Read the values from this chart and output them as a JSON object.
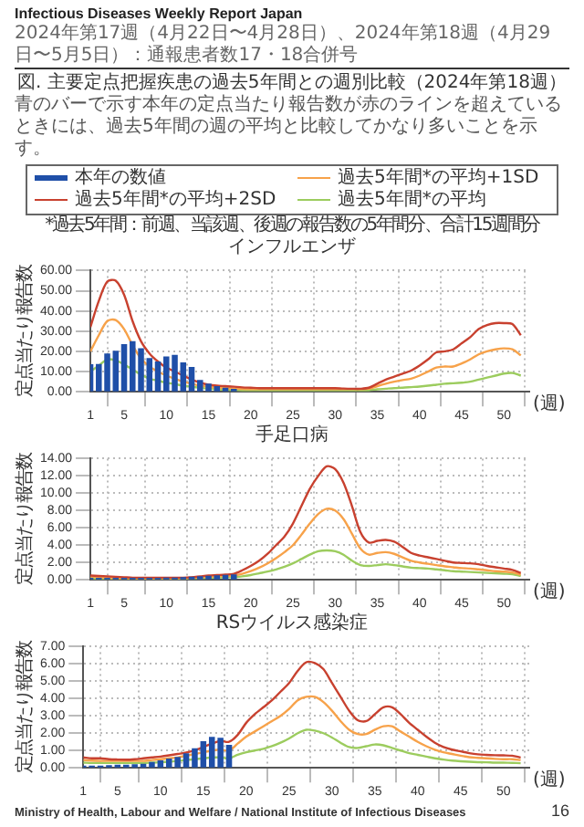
{
  "chart_data": [
    {
      "type": "line",
      "title": "インフルエンザ",
      "ylabel": "定点当たり報告数",
      "xlabel": "(週)",
      "annotations": [
        "Infectious Diseases Weekly Report Japan",
        "2024年第17週（4月22日〜4月28日）、2024年第18週（4月29日〜5月5日）：通報患者数17・18合併号",
        "図. 主要定点把握疾患の過去5年間との週別比較（2024年第18週）",
        "青のバーで示す本年の定点当たり報告数が赤のラインを超えているときには、過去5年間の週の平均と比較してかなり多いことを示す。",
        "*過去5年間：前週、当該週、後週の報告数の5年間分、合計15週間分"
      ],
      "x": [
        1,
        2,
        3,
        4,
        5,
        6,
        7,
        8,
        9,
        10,
        11,
        12,
        13,
        14,
        15,
        16,
        17,
        18,
        19,
        20,
        21,
        22,
        23,
        24,
        25,
        26,
        27,
        28,
        29,
        30,
        31,
        32,
        33,
        34,
        35,
        36,
        37,
        38,
        39,
        40,
        41,
        42,
        43,
        44,
        45,
        46,
        47,
        48,
        49,
        50,
        51,
        52
      ],
      "xlim": [
        1,
        53
      ],
      "xticks": [
        1,
        5,
        10,
        15,
        20,
        25,
        30,
        35,
        40,
        45,
        50
      ],
      "ylim": [
        0,
        60
      ],
      "yticks": [
        {
          "value": 0,
          "label": "0.00"
        },
        {
          "value": 10,
          "label": "10.00"
        },
        {
          "value": 20,
          "label": "20.00"
        },
        {
          "value": 30,
          "label": "30.00"
        },
        {
          "value": 40,
          "label": "40.00"
        },
        {
          "value": 50,
          "label": "50.00"
        },
        {
          "value": 60,
          "label": "60.00"
        }
      ],
      "grid": true,
      "legend": "top",
      "series": [
        {
          "name": "本年の数値",
          "type": "bar",
          "color": "#1f4fa8",
          "x": [
            1,
            2,
            3,
            4,
            5,
            6,
            7,
            8,
            9,
            10,
            11,
            12,
            13,
            14,
            15,
            16,
            17,
            18
          ],
          "values": [
            13.3,
            13.5,
            18.6,
            20,
            23.3,
            24.7,
            21.3,
            16.4,
            14.7,
            17.2,
            18,
            14.3,
            12,
            5.6,
            3.7,
            2.5,
            1.7,
            1.2
          ]
        },
        {
          "name": "過去5年間*の平均+2SD",
          "color": "#c8412f",
          "values": [
            32,
            45,
            54.5,
            55,
            48,
            35,
            25,
            19,
            15,
            12,
            10,
            8,
            6,
            4.5,
            3.5,
            3,
            2.8,
            2.5,
            2.2,
            2,
            1.8,
            1.8,
            1.8,
            1.8,
            1.8,
            1.8,
            1.8,
            1.8,
            1.8,
            1.8,
            1.6,
            1.5,
            1.5,
            2,
            4,
            6,
            7.5,
            9,
            10.5,
            13,
            16,
            19.5,
            20,
            21,
            24,
            27,
            31,
            33,
            34,
            34,
            33.5,
            28
          ]
        },
        {
          "name": "過去5年間*の平均+1SD",
          "color": "#f7a24a",
          "values": [
            20,
            28,
            35,
            35.5,
            31,
            23,
            16.5,
            12.5,
            10,
            8,
            6.5,
            5,
            4,
            3,
            2.5,
            2,
            1.8,
            1.6,
            1.4,
            1.3,
            1.3,
            1.3,
            1.3,
            1.3,
            1.3,
            1.3,
            1.3,
            1.3,
            1.3,
            1.3,
            1.3,
            1.3,
            1.3,
            1.5,
            2.8,
            4,
            5,
            5.8,
            6.5,
            8,
            10,
            12,
            12.5,
            12.5,
            14,
            16,
            18.5,
            20,
            21,
            21.5,
            21,
            18
          ]
        },
        {
          "name": "過去5年間*の平均",
          "color": "#9ccc5e",
          "values": [
            10,
            13,
            16,
            15.5,
            13.5,
            11,
            8.5,
            6.5,
            5.5,
            4.5,
            3.8,
            3,
            2.5,
            2,
            1.5,
            1.2,
            1,
            0.9,
            0.8,
            0.7,
            0.7,
            0.7,
            0.7,
            0.7,
            0.7,
            0.7,
            0.7,
            0.7,
            0.7,
            0.7,
            0.7,
            0.7,
            0.7,
            0.8,
            1.2,
            1.5,
            1.8,
            2,
            2.3,
            2.6,
            3,
            3.5,
            4,
            4.2,
            4.5,
            5,
            6,
            7,
            8,
            9,
            9.3,
            8
          ]
        }
      ]
    },
    {
      "type": "line",
      "title": "手足口病",
      "ylabel": "定点当たり報告数",
      "xlabel": "(週)",
      "x": [
        1,
        2,
        3,
        4,
        5,
        6,
        7,
        8,
        9,
        10,
        11,
        12,
        13,
        14,
        15,
        16,
        17,
        18,
        19,
        20,
        21,
        22,
        23,
        24,
        25,
        26,
        27,
        28,
        29,
        30,
        31,
        32,
        33,
        34,
        35,
        36,
        37,
        38,
        39,
        40,
        41,
        42,
        43,
        44,
        45,
        46,
        47,
        48,
        49,
        50,
        51,
        52
      ],
      "xlim": [
        1,
        53
      ],
      "xticks": [
        1,
        5,
        10,
        15,
        20,
        25,
        30,
        35,
        40,
        45,
        50
      ],
      "ylim": [
        0,
        14
      ],
      "yticks": [
        {
          "value": 0,
          "label": "0.00"
        },
        {
          "value": 2,
          "label": "2.00"
        },
        {
          "value": 4,
          "label": "4.00"
        },
        {
          "value": 6,
          "label": "6.00"
        },
        {
          "value": 8,
          "label": "8.00"
        },
        {
          "value": 10,
          "label": "10.00"
        },
        {
          "value": 12,
          "label": "12.00"
        },
        {
          "value": 14,
          "label": "14.00"
        }
      ],
      "grid": true,
      "series": [
        {
          "type": "bar",
          "color": "#1f4fa8",
          "x": [
            1,
            2,
            3,
            4,
            5,
            6,
            7,
            8,
            9,
            10,
            11,
            12,
            13,
            14,
            15,
            16,
            17,
            18
          ],
          "values": [
            0.15,
            0.15,
            0.15,
            0.15,
            0.15,
            0.15,
            0.15,
            0.15,
            0.15,
            0.2,
            0.2,
            0.25,
            0.3,
            0.35,
            0.4,
            0.45,
            0.5,
            0.55
          ]
        },
        {
          "color": "#c8412f",
          "values": [
            0.5,
            0.45,
            0.4,
            0.35,
            0.3,
            0.25,
            0.25,
            0.25,
            0.25,
            0.25,
            0.25,
            0.25,
            0.3,
            0.4,
            0.5,
            0.55,
            0.6,
            0.7,
            1.1,
            1.6,
            2.2,
            3,
            4,
            5,
            6.5,
            8.5,
            10.5,
            12,
            13.1,
            12.8,
            11.2,
            8.5,
            5.5,
            4.3,
            4.5,
            4.6,
            4.4,
            3.8,
            3.1,
            2.8,
            2.6,
            2.4,
            2.2,
            2,
            1.95,
            1.9,
            1.8,
            1.6,
            1.45,
            1.3,
            1.15,
            0.8
          ]
        },
        {
          "color": "#f7a24a",
          "values": [
            0.4,
            0.3,
            0.25,
            0.2,
            0.2,
            0.2,
            0.2,
            0.2,
            0.2,
            0.2,
            0.2,
            0.2,
            0.25,
            0.3,
            0.35,
            0.4,
            0.45,
            0.5,
            0.7,
            1,
            1.4,
            1.9,
            2.5,
            3.2,
            4,
            5.2,
            6.5,
            7.6,
            8.2,
            8,
            7,
            5.3,
            3.6,
            2.9,
            3.1,
            3.2,
            3,
            2.6,
            2.2,
            2,
            1.85,
            1.7,
            1.55,
            1.45,
            1.35,
            1.3,
            1.2,
            1.1,
            1,
            0.95,
            0.85,
            0.6
          ]
        },
        {
          "color": "#9ccc5e",
          "values": [
            0.2,
            0.15,
            0.15,
            0.15,
            0.15,
            0.15,
            0.15,
            0.15,
            0.15,
            0.15,
            0.15,
            0.15,
            0.2,
            0.2,
            0.25,
            0.25,
            0.3,
            0.3,
            0.4,
            0.55,
            0.75,
            0.95,
            1.2,
            1.5,
            1.9,
            2.4,
            2.9,
            3.3,
            3.4,
            3.3,
            2.9,
            2.2,
            1.7,
            1.6,
            1.7,
            1.8,
            1.7,
            1.55,
            1.4,
            1.35,
            1.3,
            1.2,
            1.1,
            1,
            0.95,
            0.9,
            0.85,
            0.8,
            0.75,
            0.7,
            0.65,
            0.45
          ]
        }
      ]
    },
    {
      "type": "line",
      "title": "RSウイルス感染症",
      "ylabel": "定点当たり報告数",
      "xlabel": "(週)",
      "annotations": [
        "Ministry of Health, Labour and Welfare / National Institute of Infectious Diseases",
        "16"
      ],
      "x": [
        1,
        2,
        3,
        4,
        5,
        6,
        7,
        8,
        9,
        10,
        11,
        12,
        13,
        14,
        15,
        16,
        17,
        18,
        19,
        20,
        21,
        22,
        23,
        24,
        25,
        26,
        27,
        28,
        29,
        30,
        31,
        32,
        33,
        34,
        35,
        36,
        37,
        38,
        39,
        40,
        41,
        42,
        43,
        44,
        45,
        46,
        47,
        48,
        49,
        50,
        51,
        52
      ],
      "xlim": [
        1,
        53
      ],
      "xticks": [
        1,
        5,
        10,
        15,
        20,
        25,
        30,
        35,
        40,
        45,
        50
      ],
      "ylim": [
        0,
        7
      ],
      "yticks": [
        {
          "value": 0,
          "label": "0.00"
        },
        {
          "value": 1,
          "label": "1.00"
        },
        {
          "value": 2,
          "label": "2.00"
        },
        {
          "value": 3,
          "label": "3.00"
        },
        {
          "value": 4,
          "label": "4.00"
        },
        {
          "value": 5,
          "label": "5.00"
        },
        {
          "value": 6,
          "label": "6.00"
        },
        {
          "value": 7,
          "label": "7.00"
        }
      ],
      "grid": true,
      "series": [
        {
          "type": "bar",
          "color": "#1f4fa8",
          "x": [
            1,
            2,
            3,
            4,
            5,
            6,
            7,
            8,
            9,
            10,
            11,
            12,
            13,
            14,
            15,
            16,
            17,
            18
          ],
          "values": [
            0.1,
            0.1,
            0.1,
            0.12,
            0.15,
            0.15,
            0.18,
            0.2,
            0.3,
            0.4,
            0.5,
            0.6,
            0.8,
            1.1,
            1.5,
            1.75,
            1.7,
            1.3
          ]
        },
        {
          "color": "#c8412f",
          "values": [
            0.6,
            0.55,
            0.55,
            0.5,
            0.48,
            0.47,
            0.5,
            0.55,
            0.6,
            0.65,
            0.72,
            0.8,
            0.88,
            1,
            1.2,
            1.4,
            1.55,
            1.5,
            1.9,
            2.6,
            3.1,
            3.5,
            3.9,
            4.4,
            4.9,
            5.6,
            6.1,
            6.05,
            5.7,
            4.9,
            4.1,
            3.3,
            2.75,
            2.7,
            3.1,
            3.5,
            3.5,
            3.1,
            2.6,
            2.2,
            1.8,
            1.45,
            1.2,
            1.05,
            0.95,
            0.85,
            0.78,
            0.75,
            0.73,
            0.72,
            0.7,
            0.6
          ]
        },
        {
          "color": "#f7a24a",
          "values": [
            0.45,
            0.42,
            0.4,
            0.4,
            0.4,
            0.4,
            0.4,
            0.4,
            0.45,
            0.5,
            0.55,
            0.6,
            0.7,
            0.8,
            0.9,
            1,
            1.05,
            1,
            1.4,
            1.8,
            2.1,
            2.4,
            2.7,
            3,
            3.4,
            3.9,
            4.1,
            4.1,
            3.8,
            3.3,
            2.7,
            2.2,
            1.95,
            1.95,
            2.2,
            2.4,
            2.4,
            2.1,
            1.8,
            1.5,
            1.25,
            1.05,
            0.9,
            0.8,
            0.7,
            0.62,
            0.58,
            0.55,
            0.52,
            0.5,
            0.5,
            0.45
          ]
        },
        {
          "color": "#9ccc5e",
          "values": [
            0.3,
            0.28,
            0.28,
            0.28,
            0.28,
            0.28,
            0.28,
            0.28,
            0.3,
            0.32,
            0.35,
            0.4,
            0.45,
            0.5,
            0.55,
            0.6,
            0.6,
            0.55,
            0.75,
            0.9,
            1,
            1.1,
            1.25,
            1.45,
            1.7,
            2,
            2.2,
            2.15,
            2,
            1.75,
            1.45,
            1.2,
            1.15,
            1.25,
            1.35,
            1.3,
            1.15,
            1,
            0.85,
            0.75,
            0.65,
            0.55,
            0.48,
            0.42,
            0.38,
            0.35,
            0.33,
            0.32,
            0.3,
            0.3,
            0.29,
            0.27
          ]
        }
      ]
    }
  ]
}
